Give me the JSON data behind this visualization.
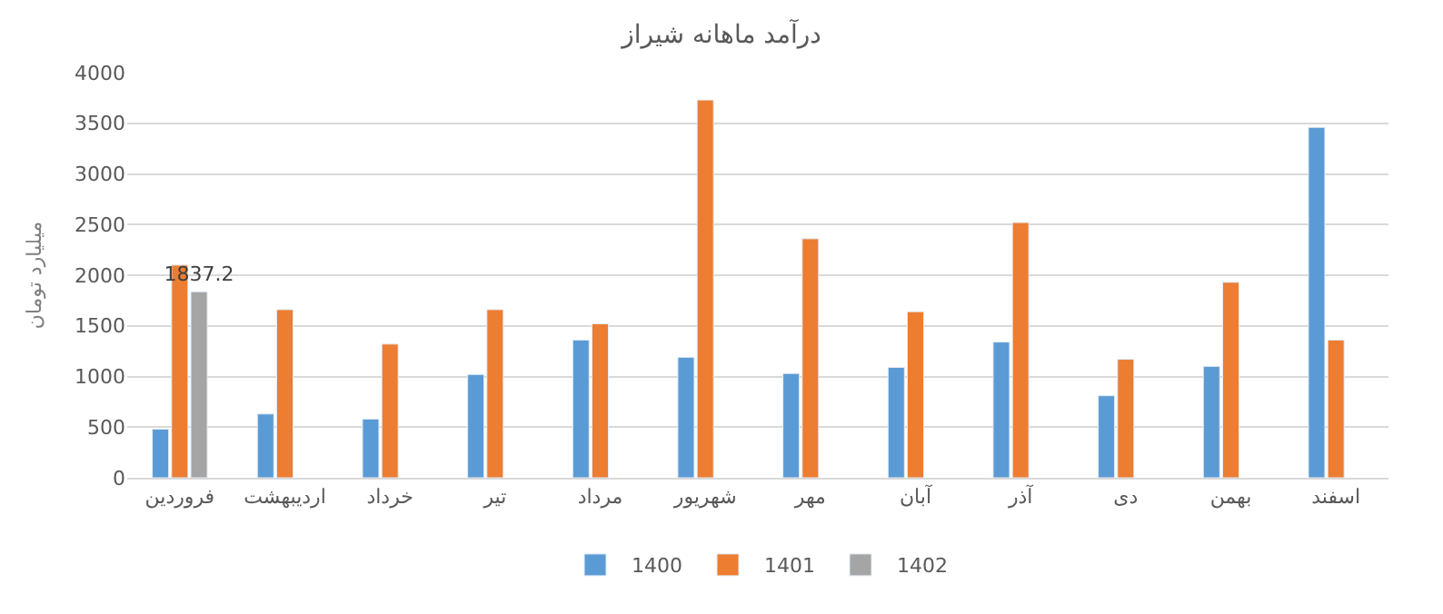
{
  "chart_data": {
    "type": "bar",
    "title": "درآمد ماهانه شیراز",
    "ylabel": "میلیارد تومان",
    "categories": [
      "فروردین",
      "اردیبهشت",
      "خرداد",
      "تیر",
      "مرداد",
      "شهریور",
      "مهر",
      "آبان",
      "آذر",
      "دی",
      "بهمن",
      "اسفند"
    ],
    "series": [
      {
        "name": "1400",
        "color": "#5b9bd5",
        "values": [
          480,
          630,
          580,
          1020,
          1360,
          1190,
          1030,
          1090,
          1340,
          810,
          1100,
          3460
        ]
      },
      {
        "name": "1401",
        "color": "#ed7d31",
        "values": [
          2100,
          1660,
          1320,
          1660,
          1520,
          3730,
          2360,
          1640,
          2520,
          1170,
          1930,
          1360
        ]
      },
      {
        "name": "1402",
        "color": "#a5a5a5",
        "values": [
          1837.2,
          null,
          null,
          null,
          null,
          null,
          null,
          null,
          null,
          null,
          null,
          null
        ],
        "value_labels": [
          "1837.2",
          null,
          null,
          null,
          null,
          null,
          null,
          null,
          null,
          null,
          null,
          null
        ]
      }
    ],
    "ylim": [
      0,
      4000
    ],
    "yticks": [
      0,
      500,
      1000,
      1500,
      2000,
      2500,
      3000,
      3500,
      4000
    ],
    "grid": "y",
    "legend": "bottom"
  }
}
